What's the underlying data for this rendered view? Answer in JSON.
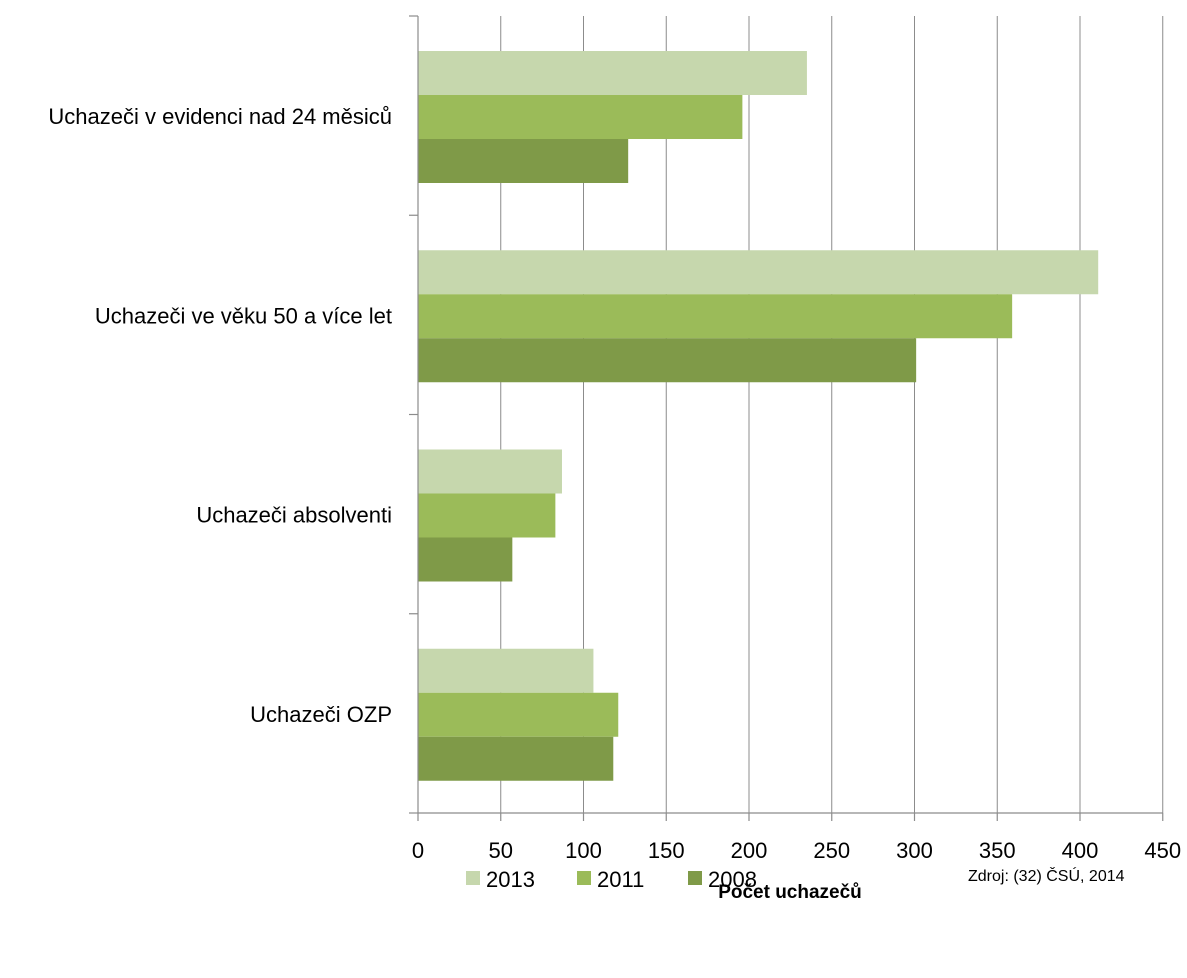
{
  "chart_data": {
    "type": "bar",
    "orientation": "horizontal",
    "title": "",
    "xlabel": "Počet uchazečů",
    "ylabel": "",
    "xlim": [
      0,
      450
    ],
    "x_ticks": [
      0,
      50,
      100,
      150,
      200,
      250,
      300,
      350,
      400,
      450
    ],
    "grid": "vertical",
    "legend_position": "bottom",
    "categories": [
      "Uchazeči v evidenci nad 24 měsiců",
      "Uchazeči ve věku 50 a více let",
      "Uchazeči absolventi",
      "Uchazeči OZP"
    ],
    "series": [
      {
        "name": "2013",
        "color": "#c6d7ad",
        "values": [
          235,
          411,
          87,
          106
        ]
      },
      {
        "name": "2011",
        "color": "#9bbb59",
        "values": [
          196,
          359,
          83,
          121
        ]
      },
      {
        "name": "2008",
        "color": "#7f9a48",
        "values": [
          127,
          301,
          57,
          118
        ]
      }
    ],
    "source_note": "Zdroj: (32) ČSÚ, 2014"
  }
}
